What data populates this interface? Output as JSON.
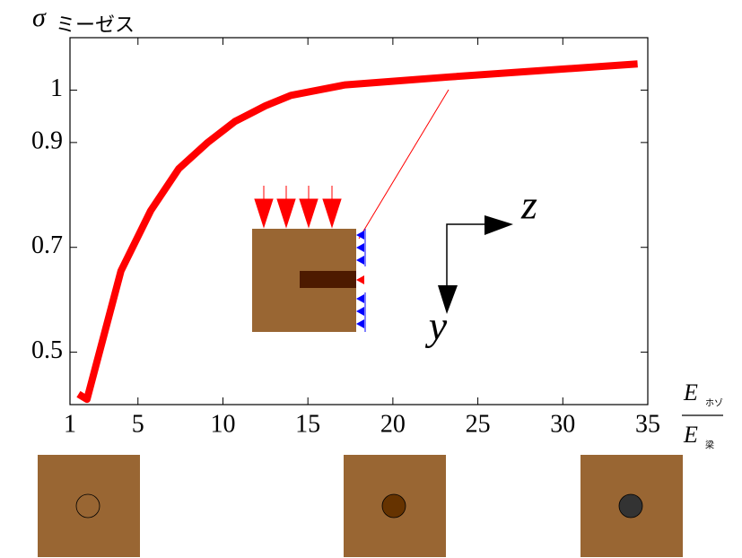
{
  "chart_data": {
    "type": "line",
    "ylabel_symbol": "σ",
    "ylabel_subscript": "ミーゼス",
    "xlabel_numerator": "E",
    "xlabel_numerator_subscript": "ホゾ",
    "xlabel_denominator": "E",
    "xlabel_denominator_subscript": "梁",
    "x": [
      1.5,
      2,
      4,
      5.75,
      7.4,
      9.1,
      10.7,
      12.5,
      14,
      15.6,
      17.2,
      23.3,
      34.4
    ],
    "series": [
      {
        "color": "#ff0000",
        "values": [
          0.42,
          0.41,
          0.655,
          0.77,
          0.85,
          0.9,
          0.94,
          0.97,
          0.99,
          1.0,
          1.01,
          1.025,
          1.05
        ]
      }
    ],
    "xlim": [
      1,
      35
    ],
    "xticks": [
      1,
      5,
      10,
      15,
      20,
      25,
      30,
      35
    ],
    "ylim": [
      0.4,
      1.1
    ],
    "yticks": [
      0.5,
      0.7,
      0.9,
      1
    ]
  },
  "diagram": {
    "axis_z": "z",
    "axis_y": "y"
  }
}
